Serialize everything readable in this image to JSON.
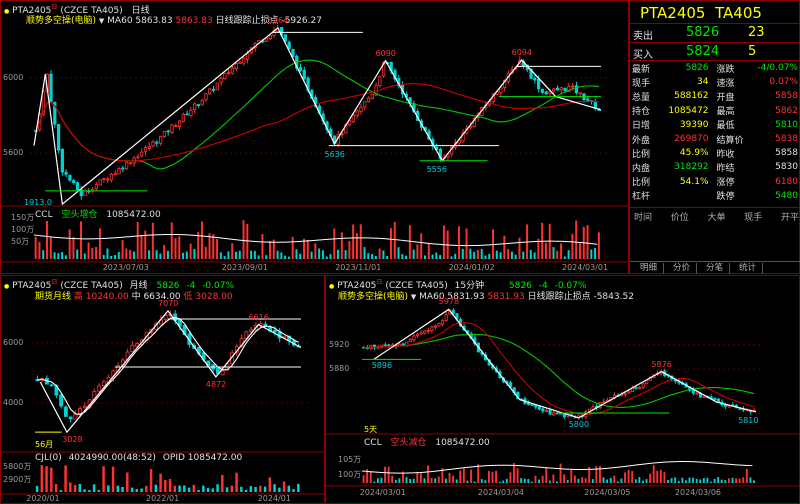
{
  "top": {
    "code": "PTA2405",
    "sup": "日",
    "exch": "(CZCE TA405)",
    "period": "日线",
    "ind_name": "顺势多空操(电脑)",
    "ma_label": "MA60 5863.83",
    "ma_val": "5863.83",
    "trail_label": "日线跟踪止损点 -5926.27",
    "yticks": [
      "6000",
      "5600"
    ],
    "peaks": [
      "6264",
      "6090",
      "6094"
    ],
    "troughs": [
      "5636",
      "5556"
    ],
    "low_label": "1913.0",
    "ccl": {
      "name": "CCL",
      "desc": "空头增仓",
      "val": "1085472.00",
      "ticks": [
        "150万",
        "100万",
        "50万"
      ]
    },
    "dates": [
      "2023/07/03",
      "2023/09/01",
      "2023/11/01",
      "2024/01/02",
      "2024/03/01"
    ]
  },
  "quote": {
    "title_code": "PTA2405",
    "title_name": "TA405",
    "sell_label": "卖出",
    "sell_price": "5826",
    "sell_vol": "23",
    "buy_label": "买入",
    "buy_price": "5824",
    "buy_vol": "5",
    "rows": [
      [
        "最新",
        "5826",
        "涨跌",
        "-4/0.07%"
      ],
      [
        "现手",
        "34",
        "速涨",
        "0.07%"
      ],
      [
        "总量",
        "588162",
        "开盘",
        "5858"
      ],
      [
        "持仓",
        "1085472",
        "最高",
        "5862"
      ],
      [
        "日增",
        "39390",
        "最低",
        "5810"
      ],
      [
        "外盘",
        "269870",
        "结算价",
        "5838"
      ],
      [
        "比例",
        "45.9%",
        "昨收",
        "5858"
      ],
      [
        "内盘",
        "318292",
        "昨结",
        "5830"
      ],
      [
        "比例",
        "54.1%",
        "涨停",
        "6180"
      ],
      [
        "杠杆",
        "",
        "跌停",
        "5480"
      ]
    ],
    "tick_header": [
      "时间",
      "价位",
      "大单",
      "现手",
      "开平"
    ],
    "tabs": [
      "明细",
      "分价",
      "分笔",
      "统计"
    ]
  },
  "bl": {
    "code": "PTA2405",
    "sup": "日",
    "exch": "(CZCE TA405)",
    "period": "月线",
    "last": "5826",
    "chg": "-4",
    "pct": "-0.07%",
    "ind": "期货月线",
    "high_label": "高 10240.00",
    "mid_label": "中 6634.00",
    "low_label": "低 3028.00",
    "yticks": [
      "6000",
      "4000"
    ],
    "peaks": [
      "7070",
      "6616"
    ],
    "troughs": [
      "4872",
      "3028"
    ],
    "month_label": "56月",
    "cjl": "CJL(0)",
    "cjl_val": "4024990.00(48:52)",
    "opid": "OPID 1085472.00",
    "vticks": [
      "5800万",
      "2900万"
    ],
    "dates": [
      "2020/01",
      "2022/01",
      "2024/01"
    ]
  },
  "br": {
    "code": "PTA2405",
    "sup": "日",
    "exch": "(CZCE TA405)",
    "period": "15分钟",
    "last": "5826",
    "chg": "-4",
    "pct": "-0.07%",
    "ind": "顺势多空操(电脑)",
    "ma_label": "MA60 5831.93",
    "ma_val": "5831.93",
    "trail_label": "日线跟踪止损点 -5843.52",
    "yticks": [
      "5920",
      "5880"
    ],
    "peaks": [
      "5978",
      "5876"
    ],
    "troughs": [
      "5896",
      "5800",
      "5810"
    ],
    "days": "5天",
    "ccl": {
      "name": "CCL",
      "desc": "空头减仓",
      "val": "1085472.00",
      "ticks": [
        "105万",
        "100万"
      ]
    },
    "dates": [
      "2024/03/01",
      "2024/03/04",
      "2024/03/05",
      "2024/03/06"
    ]
  }
}
